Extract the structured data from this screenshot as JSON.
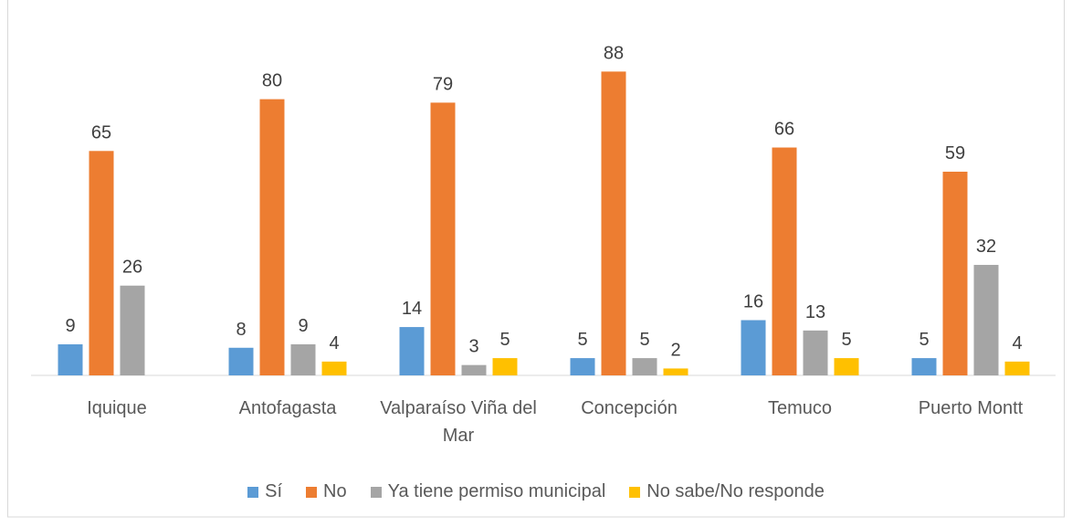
{
  "chart_data": {
    "type": "bar",
    "categories": [
      "Iquique",
      "Antofagasta",
      "Valparaíso Viña del Mar",
      "Concepción",
      "Temuco",
      "Puerto Montt"
    ],
    "series": [
      {
        "name": "Sí",
        "color": "#5b9bd5",
        "values": [
          9,
          8,
          14,
          5,
          16,
          5
        ]
      },
      {
        "name": "No",
        "color": "#ed7d31",
        "values": [
          65,
          80,
          79,
          88,
          66,
          59
        ]
      },
      {
        "name": "Ya tiene permiso municipal",
        "color": "#a5a5a5",
        "values": [
          26,
          9,
          3,
          5,
          13,
          32
        ]
      },
      {
        "name": "No sabe/No responde",
        "color": "#ffc000",
        "values": [
          null,
          4,
          5,
          2,
          5,
          4
        ]
      }
    ],
    "ylim": [
      0,
      100
    ]
  }
}
